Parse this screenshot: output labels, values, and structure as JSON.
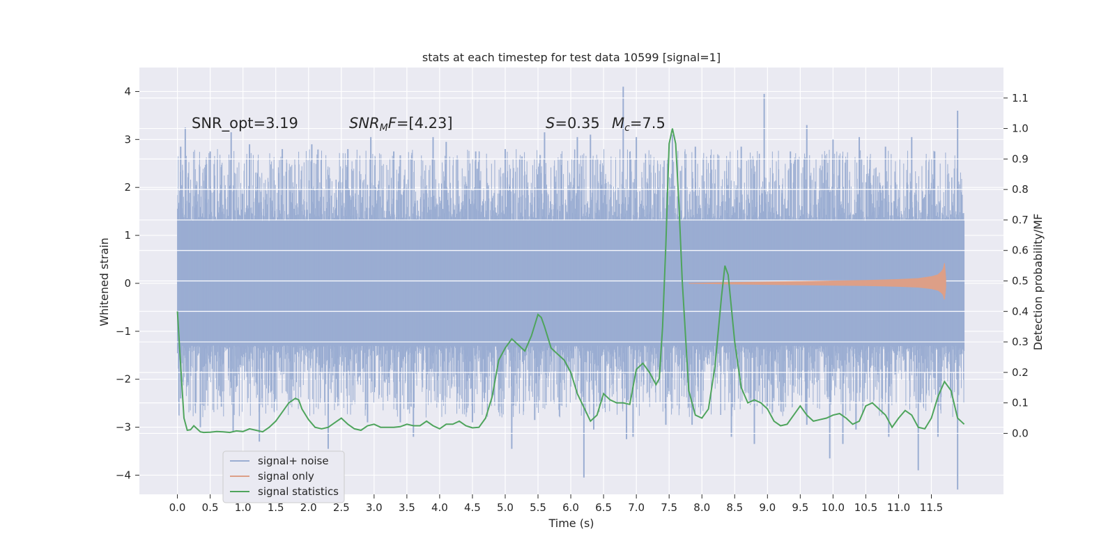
{
  "chart_data": {
    "type": "line",
    "title": "stats at each timestep for test data 10599 [signal=1]",
    "xlabel": "Time (s)",
    "ylabel": "Whitened strain",
    "ylabel_right": "Detection probability/MF",
    "xlim": [
      -0.58,
      12.6
    ],
    "ylim": [
      -4.4,
      4.5
    ],
    "ylim_right": [
      -0.2,
      1.2
    ],
    "x_ticks": [
      0.0,
      0.5,
      1.0,
      1.5,
      2.0,
      2.5,
      3.0,
      3.5,
      4.0,
      4.5,
      5.0,
      5.5,
      6.0,
      6.5,
      7.0,
      7.5,
      8.0,
      8.5,
      9.0,
      9.5,
      10.0,
      10.5,
      11.0,
      11.5
    ],
    "x_tick_labels": [
      "0.0",
      "0.5",
      "1.0",
      "1.5",
      "2.0",
      "2.5",
      "3.0",
      "3.5",
      "4.0",
      "4.5",
      "5.0",
      "5.5",
      "6.0",
      "6.5",
      "7.0",
      "7.5",
      "8.0",
      "8.5",
      "9.0",
      "9.5",
      "10.0",
      "10.5",
      "11.0",
      "11.5"
    ],
    "y_ticks": [
      4,
      3,
      2,
      1,
      0,
      -1,
      -2,
      -3,
      -4
    ],
    "y_tick_labels": [
      "4",
      "3",
      "2",
      "1",
      "0",
      "−1",
      "−2",
      "−3",
      "−4"
    ],
    "y2_ticks": [
      1.1,
      1.0,
      0.9,
      0.8,
      0.7,
      0.6,
      0.5,
      0.4,
      0.3,
      0.2,
      0.1,
      0.0
    ],
    "y2_tick_labels": [
      "1.1",
      "1.0",
      "0.9",
      "0.8",
      "0.7",
      "0.6",
      "0.5",
      "0.4",
      "0.3",
      "0.2",
      "0.1",
      "0.0"
    ],
    "grid": true,
    "legend_position": "lower-left",
    "series": [
      {
        "name": "signal+ noise",
        "color": "#9aadd2",
        "x_range": [
          0.0,
          12.0
        ],
        "envelope_core": 1.3,
        "typical_peak": 2.3,
        "spikes_up": [
          [
            0.05,
            2.85
          ],
          [
            0.12,
            3.25
          ],
          [
            0.5,
            2.75
          ],
          [
            0.82,
            3.15
          ],
          [
            1.1,
            2.9
          ],
          [
            1.6,
            2.8
          ],
          [
            2.05,
            2.9
          ],
          [
            2.6,
            2.8
          ],
          [
            2.95,
            3.05
          ],
          [
            3.3,
            2.75
          ],
          [
            3.9,
            3.05
          ],
          [
            4.1,
            2.95
          ],
          [
            4.55,
            2.75
          ],
          [
            5.0,
            2.8
          ],
          [
            5.6,
            3.15
          ],
          [
            6.1,
            3.05
          ],
          [
            6.3,
            3.1
          ],
          [
            6.8,
            4.1
          ],
          [
            7.0,
            3.05
          ],
          [
            7.55,
            3.1
          ],
          [
            7.9,
            2.85
          ],
          [
            8.6,
            2.85
          ],
          [
            8.95,
            3.95
          ],
          [
            9.35,
            2.75
          ],
          [
            9.6,
            3.3
          ],
          [
            10.0,
            3.0
          ],
          [
            10.4,
            3.05
          ],
          [
            10.8,
            2.85
          ],
          [
            11.2,
            3.05
          ],
          [
            11.55,
            2.75
          ],
          [
            11.9,
            3.6
          ]
        ],
        "spikes_down": [
          [
            0.05,
            -2.4
          ],
          [
            0.35,
            -3.0
          ],
          [
            0.85,
            -3.1
          ],
          [
            1.25,
            -3.3
          ],
          [
            2.3,
            -3.45
          ],
          [
            2.9,
            -2.9
          ],
          [
            3.4,
            -2.9
          ],
          [
            3.6,
            -3.2
          ],
          [
            4.5,
            -2.9
          ],
          [
            5.1,
            -3.45
          ],
          [
            5.45,
            -2.85
          ],
          [
            6.2,
            -4.05
          ],
          [
            6.35,
            -3.05
          ],
          [
            6.85,
            -3.25
          ],
          [
            6.95,
            -3.2
          ],
          [
            7.45,
            -2.95
          ],
          [
            7.85,
            -2.95
          ],
          [
            8.45,
            -3.2
          ],
          [
            8.8,
            -3.35
          ],
          [
            9.6,
            -2.95
          ],
          [
            9.95,
            -3.65
          ],
          [
            10.15,
            -3.35
          ],
          [
            10.35,
            -3.05
          ],
          [
            10.85,
            -3.2
          ],
          [
            11.3,
            -3.9
          ],
          [
            11.6,
            -3.2
          ],
          [
            11.9,
            -4.3
          ]
        ]
      },
      {
        "name": "signal only",
        "color": "#dd9f87",
        "x": [
          7.8,
          8.5,
          9.0,
          9.5,
          10.0,
          10.5,
          11.0,
          11.3,
          11.5,
          11.6,
          11.65,
          11.68,
          11.7,
          11.72
        ],
        "amplitude": [
          0.0,
          0.02,
          0.03,
          0.04,
          0.05,
          0.06,
          0.08,
          0.1,
          0.14,
          0.18,
          0.24,
          0.3,
          0.42,
          0.1
        ]
      },
      {
        "name": "signal statistics",
        "color": "#4ea45c",
        "x": [
          0.0,
          0.05,
          0.1,
          0.15,
          0.2,
          0.25,
          0.3,
          0.35,
          0.4,
          0.5,
          0.6,
          0.7,
          0.8,
          0.9,
          1.0,
          1.1,
          1.2,
          1.3,
          1.4,
          1.5,
          1.6,
          1.7,
          1.8,
          1.85,
          1.9,
          2.0,
          2.1,
          2.2,
          2.3,
          2.4,
          2.5,
          2.6,
          2.7,
          2.8,
          2.9,
          3.0,
          3.1,
          3.2,
          3.3,
          3.4,
          3.5,
          3.6,
          3.7,
          3.8,
          3.9,
          4.0,
          4.1,
          4.2,
          4.3,
          4.4,
          4.5,
          4.6,
          4.7,
          4.8,
          4.9,
          5.0,
          5.1,
          5.2,
          5.3,
          5.4,
          5.5,
          5.55,
          5.6,
          5.7,
          5.8,
          5.9,
          6.0,
          6.1,
          6.2,
          6.3,
          6.4,
          6.5,
          6.6,
          6.7,
          6.8,
          6.9,
          7.0,
          7.1,
          7.2,
          7.3,
          7.35,
          7.4,
          7.45,
          7.5,
          7.55,
          7.6,
          7.65,
          7.7,
          7.8,
          7.9,
          8.0,
          8.1,
          8.2,
          8.3,
          8.35,
          8.4,
          8.5,
          8.6,
          8.7,
          8.8,
          8.9,
          9.0,
          9.1,
          9.2,
          9.3,
          9.4,
          9.5,
          9.6,
          9.7,
          9.8,
          9.9,
          10.0,
          10.1,
          10.2,
          10.3,
          10.4,
          10.5,
          10.6,
          10.7,
          10.8,
          10.9,
          11.0,
          11.1,
          11.2,
          11.3,
          11.4,
          11.5,
          11.6,
          11.7,
          11.8,
          11.9,
          12.0
        ],
        "y": [
          0.4,
          0.22,
          0.05,
          0.01,
          0.012,
          0.025,
          0.015,
          0.005,
          0.003,
          0.004,
          0.006,
          0.005,
          0.003,
          0.008,
          0.006,
          0.015,
          0.01,
          0.005,
          0.02,
          0.04,
          0.07,
          0.1,
          0.115,
          0.11,
          0.08,
          0.045,
          0.02,
          0.015,
          0.02,
          0.035,
          0.05,
          0.03,
          0.015,
          0.01,
          0.025,
          0.03,
          0.02,
          0.02,
          0.02,
          0.022,
          0.03,
          0.025,
          0.025,
          0.04,
          0.025,
          0.015,
          0.03,
          0.03,
          0.04,
          0.025,
          0.018,
          0.02,
          0.05,
          0.12,
          0.24,
          0.28,
          0.31,
          0.29,
          0.27,
          0.32,
          0.39,
          0.38,
          0.35,
          0.28,
          0.26,
          0.24,
          0.2,
          0.13,
          0.085,
          0.04,
          0.06,
          0.13,
          0.11,
          0.1,
          0.1,
          0.095,
          0.21,
          0.23,
          0.2,
          0.16,
          0.18,
          0.35,
          0.62,
          0.95,
          1.0,
          0.95,
          0.75,
          0.5,
          0.14,
          0.06,
          0.05,
          0.08,
          0.22,
          0.45,
          0.55,
          0.52,
          0.3,
          0.15,
          0.1,
          0.11,
          0.1,
          0.08,
          0.04,
          0.025,
          0.03,
          0.06,
          0.09,
          0.06,
          0.04,
          0.045,
          0.05,
          0.06,
          0.065,
          0.05,
          0.03,
          0.04,
          0.09,
          0.1,
          0.08,
          0.06,
          0.02,
          0.05,
          0.075,
          0.06,
          0.02,
          0.015,
          0.05,
          0.12,
          0.17,
          0.14,
          0.05,
          0.03
        ]
      }
    ],
    "annotations": {
      "snr_opt": "SNR_opt=3.19",
      "snr_mf_main": "SNR",
      "snr_mf_sub": "M",
      "snr_mf_tail": "F",
      "snr_mf_value": "=[4.23]",
      "s_var": "S",
      "s_value": "=0.35",
      "mc_var": "M",
      "mc_sub": "c",
      "mc_value": "=7.5"
    }
  }
}
